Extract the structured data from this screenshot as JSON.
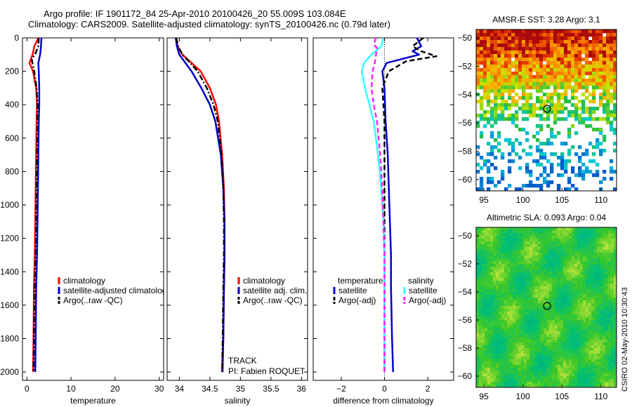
{
  "header": {
    "line1": "Argo profile: IF 1901172_84 25-Apr-2010 20100426_20 55.009S 103.084E",
    "line2": "Climatology: CARS2009. Satellite-adjusted climatology: synTS_20100426.nc (0.79d later)"
  },
  "side_label": "CSIRO 02-May-2010 10:30:43",
  "colors": {
    "red": "#ff0000",
    "blue": "#0000cc",
    "black": "#000000",
    "cyan": "#33ffff",
    "magenta": "#ff22ff"
  },
  "chart_data": [
    {
      "type": "line",
      "xlabel": "temperature",
      "ylabel": "",
      "xlim": [
        -1,
        31
      ],
      "ylim": [
        2050,
        0
      ],
      "xticks": [
        0,
        10,
        20,
        30
      ],
      "yticks": [
        0,
        200,
        400,
        600,
        800,
        1000,
        1200,
        1400,
        1600,
        1800,
        2000
      ],
      "legend_labels": [
        "climatology",
        "satellite-adjusted climatology",
        "Argo(..raw -QC)"
      ],
      "legend_placement": "bottom-right",
      "series": [
        {
          "color": "red",
          "dash": "solid",
          "x": [
            2.6,
            1.7,
            1.3,
            0.6,
            1.4,
            2.1,
            2.3,
            2.2,
            2.1,
            2.0,
            1.9,
            1.8,
            1.6,
            1.5,
            1.4
          ],
          "y": [
            0,
            50,
            100,
            150,
            200,
            300,
            400,
            500,
            700,
            900,
            1100,
            1300,
            1500,
            1800,
            2000
          ]
        },
        {
          "color": "blue",
          "dash": "solid",
          "x": [
            3.3,
            3.2,
            3.0,
            2.6,
            2.7,
            2.8,
            2.8,
            2.7,
            2.6,
            2.5,
            2.4,
            2.3,
            2.1,
            2.0,
            1.9
          ],
          "y": [
            0,
            50,
            100,
            150,
            200,
            300,
            400,
            500,
            700,
            900,
            1100,
            1300,
            1500,
            1800,
            2000
          ]
        },
        {
          "color": "black",
          "dash": "dashdot",
          "x": [
            2.7,
            2.6,
            2.0,
            1.1,
            1.6,
            2.2,
            2.4,
            2.4,
            2.3,
            2.2,
            2.1,
            2.0,
            1.8,
            1.6,
            1.5
          ],
          "y": [
            0,
            50,
            90,
            130,
            190,
            300,
            400,
            500,
            700,
            900,
            1100,
            1300,
            1500,
            1800,
            2000
          ]
        }
      ]
    },
    {
      "type": "line",
      "xlabel": "salinity",
      "ylabel": "",
      "xlim": [
        33.8,
        36.1
      ],
      "ylim": [
        2050,
        0
      ],
      "xticks": [
        34,
        34.5,
        35,
        35.5,
        36
      ],
      "legend_labels": [
        "climatology",
        "satellite adj. clim.",
        "Argo(..raw -QC)"
      ],
      "legend_placement": "bottom-right",
      "annotations": [
        "TRACK",
        "PI: Fabien ROQUET"
      ],
      "series": [
        {
          "color": "red",
          "dash": "solid",
          "x": [
            33.94,
            33.97,
            34.05,
            34.2,
            34.35,
            34.5,
            34.6,
            34.65,
            34.7,
            34.73,
            34.74,
            34.74,
            34.73,
            34.72,
            34.71
          ],
          "y": [
            0,
            50,
            100,
            150,
            200,
            300,
            400,
            500,
            700,
            900,
            1100,
            1300,
            1500,
            1800,
            2000
          ]
        },
        {
          "color": "blue",
          "dash": "solid",
          "x": [
            33.94,
            33.96,
            34.0,
            34.1,
            34.2,
            34.36,
            34.5,
            34.59,
            34.68,
            34.72,
            34.74,
            34.74,
            34.73,
            34.72,
            34.7
          ],
          "y": [
            0,
            50,
            100,
            150,
            200,
            300,
            400,
            500,
            700,
            900,
            1100,
            1300,
            1500,
            1800,
            2000
          ]
        },
        {
          "color": "black",
          "dash": "dashdot",
          "x": [
            33.95,
            33.98,
            34.05,
            34.18,
            34.3,
            34.45,
            34.56,
            34.63,
            34.69,
            34.72,
            34.73,
            34.73,
            34.72,
            34.71,
            34.7
          ],
          "y": [
            0,
            50,
            100,
            150,
            200,
            300,
            400,
            500,
            700,
            900,
            1100,
            1300,
            1500,
            1800,
            2000
          ]
        }
      ]
    },
    {
      "type": "line",
      "xlabel": "difference from climatology",
      "ylabel": "",
      "xlim": [
        -3.3,
        3.2
      ],
      "ylim": [
        2050,
        0
      ],
      "xticks": [
        -2,
        0,
        2
      ],
      "legend_groups": [
        {
          "title": "temperature",
          "labels": [
            "satellite",
            "Argo(-adj)"
          ]
        },
        {
          "title": "salinity",
          "labels": [
            "satellite",
            "Argo(-adj)"
          ]
        }
      ],
      "legend_placement": "bottom",
      "series": [
        {
          "color": "blue",
          "dash": "solid",
          "x": [
            1.5,
            1.7,
            1.3,
            1.6,
            0.1,
            -0.1,
            0.0,
            0.05,
            0.15,
            0.2,
            0.25,
            0.3,
            0.3,
            0.35,
            0.4
          ],
          "y": [
            0,
            50,
            80,
            100,
            150,
            200,
            300,
            500,
            700,
            900,
            1100,
            1300,
            1500,
            1800,
            2000
          ]
        },
        {
          "color": "black",
          "dash": "dashed",
          "x": [
            1.8,
            1.3,
            1.7,
            2.4,
            1.0,
            0.2,
            -0.1,
            0.0,
            0.0,
            0.0,
            0.0,
            0.0,
            0.0,
            0.0,
            0.0
          ],
          "y": [
            0,
            50,
            80,
            110,
            140,
            200,
            300,
            500,
            700,
            900,
            1100,
            1300,
            1500,
            1800,
            2000
          ]
        },
        {
          "color": "cyan",
          "dash": "solid",
          "x": [
            -0.05,
            -0.15,
            -0.6,
            -0.95,
            -1.05,
            -0.9,
            -0.7,
            -0.5,
            -0.3,
            -0.15,
            -0.05,
            0.0,
            0.0,
            0.0,
            0.0
          ],
          "y": [
            0,
            50,
            100,
            150,
            200,
            300,
            400,
            500,
            700,
            900,
            1100,
            1300,
            1500,
            1800,
            2000
          ]
        },
        {
          "color": "magenta",
          "dash": "dashed",
          "x": [
            -0.4,
            -0.5,
            -0.35,
            -0.45,
            -0.55,
            -0.6,
            -0.5,
            -0.35,
            -0.2,
            -0.1,
            -0.05,
            0.0,
            0.0,
            0.0,
            0.0
          ],
          "y": [
            0,
            40,
            60,
            150,
            200,
            300,
            400,
            500,
            700,
            900,
            1100,
            1300,
            1500,
            1800,
            2000
          ]
        }
      ]
    },
    {
      "type": "heatmap",
      "title": "AMSR-E SST: 3.28 Argo: 3.1",
      "xlim": [
        94,
        112
      ],
      "ylim": [
        -60.8,
        -49.4
      ],
      "xticks": [
        95,
        100,
        105,
        110
      ],
      "yticks": [
        -50,
        -52,
        -54,
        -56,
        -58,
        -60
      ],
      "marker": {
        "lon": 103.1,
        "lat": -55.0
      },
      "colormap": "sst"
    },
    {
      "type": "heatmap",
      "title": "Altimetric SLA: 0.093 Argo: 0.04",
      "xlim": [
        94,
        112
      ],
      "ylim": [
        -60.8,
        -49.4
      ],
      "xticks": [
        95,
        100,
        105,
        110
      ],
      "yticks": [
        -50,
        -52,
        -54,
        -56,
        -58,
        -60
      ],
      "marker": {
        "lon": 103.1,
        "lat": -55.0
      },
      "colormap": "sla"
    }
  ]
}
